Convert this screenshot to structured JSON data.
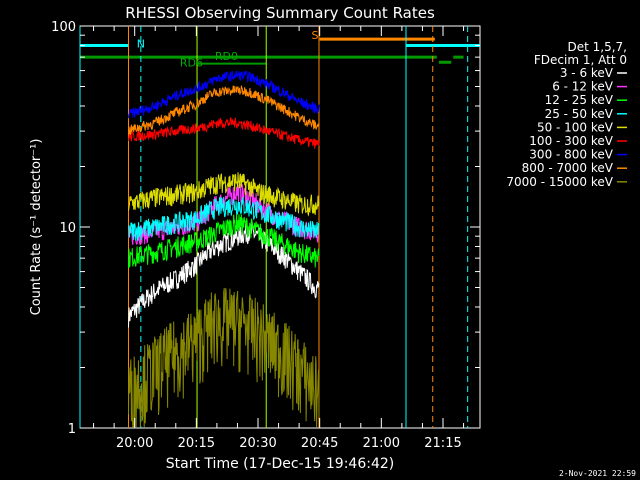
{
  "chart_data": {
    "type": "line",
    "title": "RHESSI Observing Summary Count Rates",
    "xlabel": "Start Time (17-Dec-15 19:46:42)",
    "ylabel": "Count Rate (s⁻¹ detector⁻¹)",
    "y_scale": "log",
    "xlim": [
      "19:46:42",
      "21:24:00"
    ],
    "ylim": [
      1,
      100
    ],
    "x_ticks": [
      "20:00",
      "20:15",
      "20:30",
      "20:45",
      "21:00",
      "21:15"
    ],
    "y_ticks": [
      "1",
      "10",
      "100"
    ],
    "legend": {
      "placement": "right",
      "header": [
        "Det 1,5,7,",
        "FDecim 1, Att 0"
      ]
    },
    "series": [
      {
        "name": "3 - 6 keV",
        "color": "#ffffff",
        "x": [
          "19:58",
          "20:05",
          "20:10",
          "20:15",
          "20:18",
          "20:20",
          "20:25",
          "20:28",
          "20:30",
          "20:35",
          "20:40",
          "20:44"
        ],
        "y": [
          3.5,
          4.8,
          5.5,
          6.5,
          7.5,
          8.0,
          9.0,
          9.5,
          9.0,
          7.5,
          6.0,
          5.0
        ]
      },
      {
        "name": "6 - 12 keV",
        "color": "#ff33ff",
        "x": [
          "19:58",
          "20:05",
          "20:10",
          "20:15",
          "20:18",
          "20:20",
          "20:25",
          "20:28",
          "20:30",
          "20:35",
          "20:40",
          "20:44"
        ],
        "y": [
          9.0,
          9.5,
          10.0,
          10.5,
          12.0,
          13.0,
          15.0,
          14.0,
          13.0,
          11.0,
          10.0,
          9.5
        ]
      },
      {
        "name": "12 - 25 keV",
        "color": "#00ff00",
        "x": [
          "19:58",
          "20:05",
          "20:10",
          "20:15",
          "20:18",
          "20:20",
          "20:25",
          "20:28",
          "20:30",
          "20:35",
          "20:40",
          "20:44"
        ],
        "y": [
          7.0,
          7.5,
          8.0,
          8.5,
          9.0,
          9.5,
          10.5,
          10.0,
          9.5,
          8.5,
          7.5,
          7.0
        ]
      },
      {
        "name": "25 - 50 keV",
        "color": "#00ffff",
        "x": [
          "19:58",
          "20:05",
          "20:10",
          "20:15",
          "20:18",
          "20:20",
          "20:25",
          "20:28",
          "20:30",
          "20:35",
          "20:40",
          "20:44"
        ],
        "y": [
          9.5,
          10.0,
          10.5,
          11.0,
          12.0,
          12.5,
          13.0,
          12.5,
          12.0,
          11.0,
          10.0,
          9.5
        ]
      },
      {
        "name": "50 - 100 keV",
        "color": "#dddd00",
        "x": [
          "19:58",
          "20:05",
          "20:10",
          "20:15",
          "20:18",
          "20:20",
          "20:25",
          "20:28",
          "20:30",
          "20:35",
          "20:40",
          "20:44"
        ],
        "y": [
          13.0,
          14.0,
          14.5,
          15.0,
          16.0,
          16.5,
          17.0,
          16.0,
          15.0,
          14.0,
          13.0,
          13.0
        ]
      },
      {
        "name": "100 - 300 keV",
        "color": "#ff0000",
        "x": [
          "19:58",
          "20:05",
          "20:10",
          "20:15",
          "20:18",
          "20:20",
          "20:25",
          "20:28",
          "20:30",
          "20:35",
          "20:40",
          "20:44"
        ],
        "y": [
          28.0,
          29.0,
          30.0,
          31.0,
          32.0,
          33.0,
          33.0,
          32.0,
          31.0,
          29.0,
          27.0,
          26.0
        ]
      },
      {
        "name": "300 - 800 keV",
        "color": "#0000ff",
        "x": [
          "19:58",
          "20:05",
          "20:10",
          "20:15",
          "20:18",
          "20:20",
          "20:25",
          "20:28",
          "20:30",
          "20:35",
          "20:40",
          "20:44"
        ],
        "y": [
          36.0,
          40.0,
          45.0,
          49.0,
          52.0,
          55.0,
          57.0,
          56.0,
          54.0,
          48.0,
          42.0,
          39.0
        ]
      },
      {
        "name": "800 - 7000 keV",
        "color": "#ff8800",
        "x": [
          "19:58",
          "20:05",
          "20:10",
          "20:15",
          "20:18",
          "20:20",
          "20:25",
          "20:28",
          "20:30",
          "20:35",
          "20:40",
          "20:44"
        ],
        "y": [
          30.0,
          33.0,
          37.0,
          41.0,
          45.0,
          47.0,
          48.0,
          47.0,
          45.0,
          40.0,
          35.0,
          32.0
        ]
      },
      {
        "name": "7000 - 15000 keV",
        "color": "#888800",
        "x": [
          "19:58",
          "20:05",
          "20:10",
          "20:15",
          "20:18",
          "20:20",
          "20:25",
          "20:28",
          "20:30",
          "20:35",
          "20:40",
          "20:44"
        ],
        "y": [
          1.5,
          2.0,
          2.4,
          2.8,
          3.2,
          3.5,
          3.4,
          3.2,
          3.0,
          2.5,
          2.0,
          1.6
        ]
      }
    ],
    "annotations": [
      {
        "text": "N",
        "color": "#00ffff"
      },
      {
        "text": "S",
        "color": "#ff8800"
      },
      {
        "text": "RD6",
        "color": "#00aa00"
      },
      {
        "text": "RD0",
        "color": "#00aa00"
      }
    ]
  },
  "footer": {
    "date": "2-Nov-2021 22:59"
  }
}
